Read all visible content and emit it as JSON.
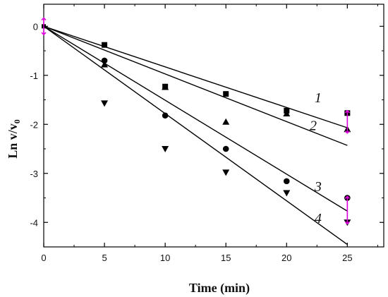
{
  "chart_data": {
    "type": "scatter",
    "xlabel": "Time (min)",
    "ylabel": "Ln v/v",
    "ylabel_subscript": "0",
    "xlim": [
      0,
      28
    ],
    "ylim": [
      -4.5,
      0.45
    ],
    "xticks": [
      0,
      5,
      10,
      15,
      20,
      25
    ],
    "yticks": [
      0,
      -1,
      -2,
      -3,
      -4
    ],
    "xtick_labels": [
      "0",
      "5",
      "10",
      "15",
      "20",
      "25"
    ],
    "ytick_labels": [
      "0",
      "-1",
      "-2",
      "-3",
      "-4"
    ],
    "grid": false,
    "series": [
      {
        "label": "1",
        "marker": "square",
        "x": [
          0,
          5,
          10,
          15,
          20,
          25
        ],
        "y": [
          0,
          -0.38,
          -1.23,
          -1.38,
          -1.72,
          -1.77
        ],
        "fit": {
          "x": [
            0,
            25
          ],
          "y": [
            0,
            -2.07
          ]
        }
      },
      {
        "label": "2",
        "marker": "triangle-up",
        "x": [
          0,
          5,
          10,
          15,
          20,
          25
        ],
        "y": [
          0,
          -0.78,
          -1.24,
          -1.95,
          -1.78,
          -2.1
        ],
        "fit": {
          "x": [
            0,
            25
          ],
          "y": [
            0,
            -2.43
          ]
        }
      },
      {
        "label": "3",
        "marker": "circle",
        "x": [
          0,
          5,
          10,
          15,
          20,
          25
        ],
        "y": [
          0,
          -0.7,
          -1.82,
          -2.5,
          -3.16,
          -3.5
        ],
        "fit": {
          "x": [
            0,
            25
          ],
          "y": [
            0,
            -3.77
          ]
        }
      },
      {
        "label": "4",
        "marker": "triangle-down",
        "x": [
          0,
          5,
          10,
          15,
          20,
          25
        ],
        "y": [
          0,
          -1.57,
          -2.5,
          -2.98,
          -3.4,
          -4.0
        ],
        "fit": {
          "x": [
            0,
            25
          ],
          "y": [
            0,
            -4.45
          ]
        }
      }
    ],
    "error_bars": [
      {
        "x": 0,
        "y": 0,
        "err": 0.17
      },
      {
        "x": 25,
        "y": -1.95,
        "err": 0.23
      },
      {
        "x": 25,
        "y": -3.75,
        "err": 0.28
      }
    ],
    "error_bar_color": "#e000e0",
    "line_color": "#000000"
  }
}
